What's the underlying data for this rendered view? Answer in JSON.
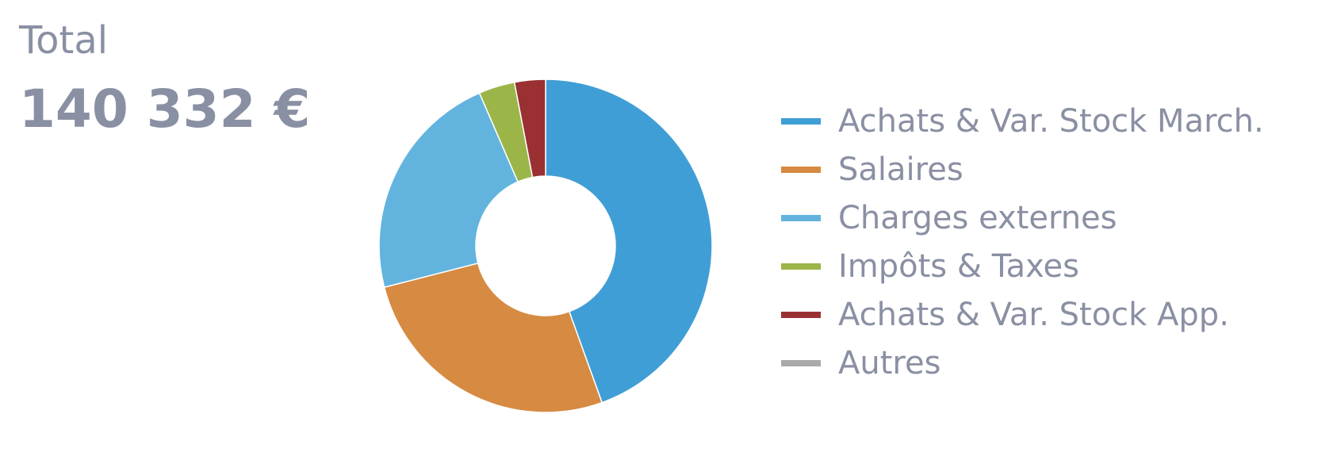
{
  "summary": {
    "label": "Total",
    "value": "140 332 €"
  },
  "chart_data": {
    "type": "pie",
    "variant": "donut",
    "categories": [
      "Achats & Var. Stock March.",
      "Salaires",
      "Charges externes",
      "Impôts & Taxes",
      "Achats & Var. Stock App.",
      "Autres"
    ],
    "values": [
      44.5,
      26.5,
      22.5,
      3.5,
      3.0,
      0.0
    ],
    "value_unit": "percent (estimated from slice angles)",
    "colors": [
      "#409ed6",
      "#d68a42",
      "#62b4de",
      "#9cb548",
      "#9b3033",
      "#aaaaaa"
    ],
    "legend_position": "right",
    "title": "",
    "start_angle_deg": 0,
    "direction": "clockwise"
  }
}
